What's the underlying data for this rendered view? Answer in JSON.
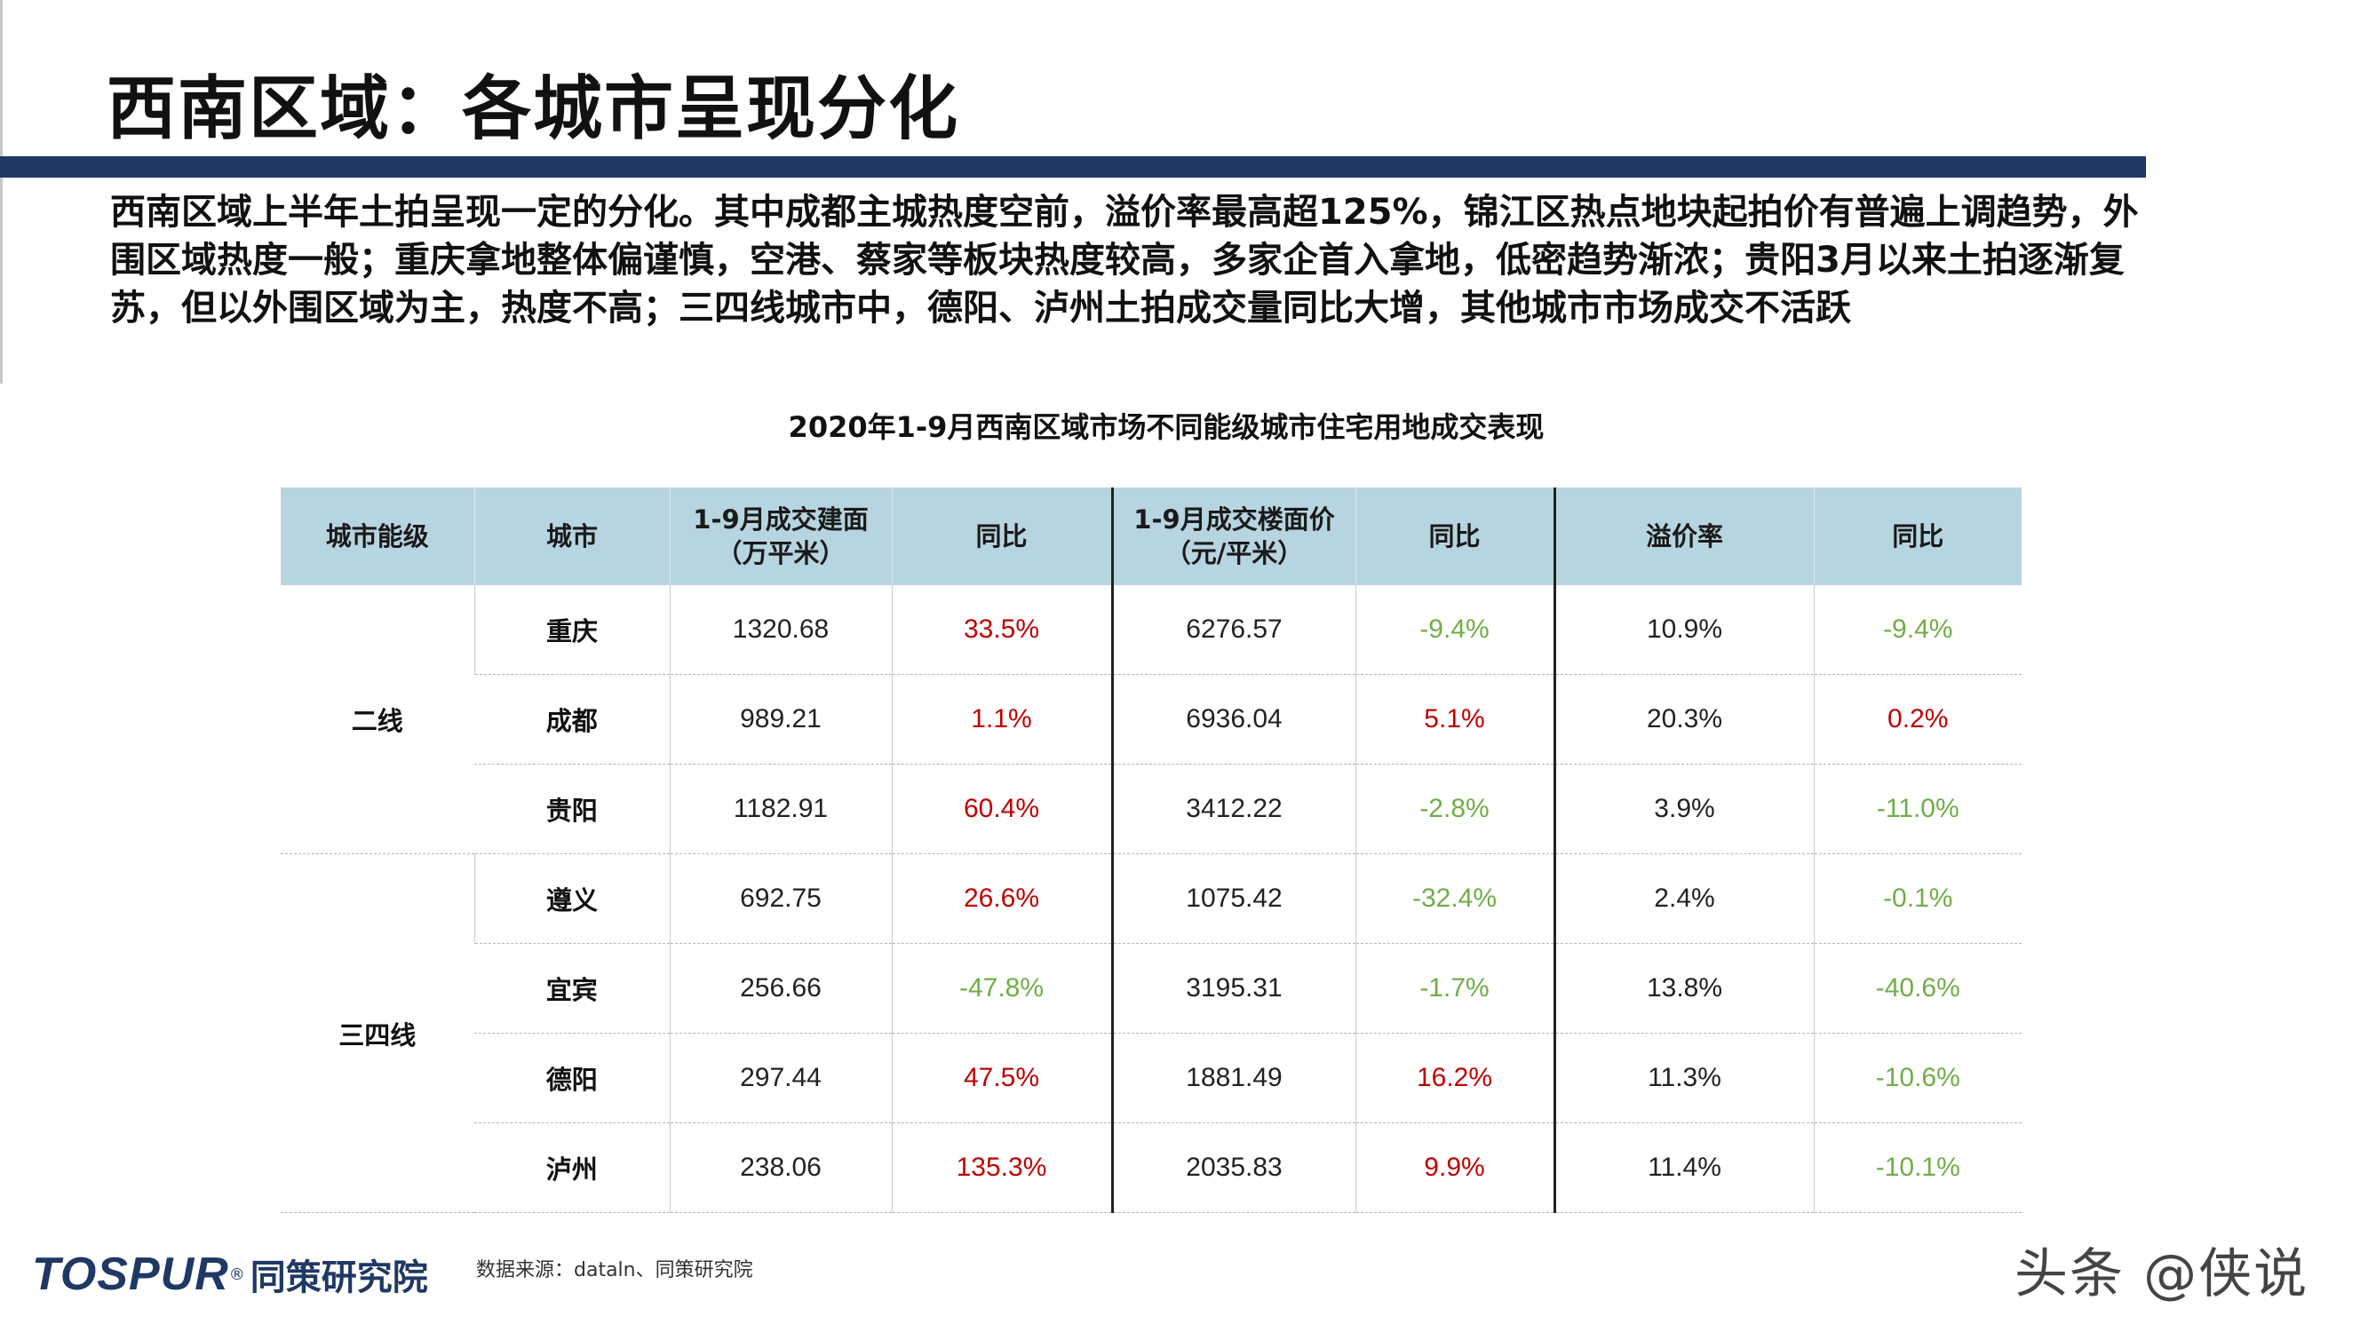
{
  "title": "西南区域：各城市呈现分化",
  "summary": "西南区域上半年土拍呈现一定的分化。其中成都主城热度空前，溢价率最高超125%，锦江区热点地块起拍价有普遍上调趋势，外围区域热度一般；重庆拿地整体偏谨慎，空港、蔡家等板块热度较高，多家企首入拿地，低密趋势渐浓；贵阳3月以来土拍逐渐复苏，但以外围区域为主，热度不高；三四线城市中，德阳、泸州土拍成交量同比大增，其他城市市场成交不活跃",
  "table": {
    "title": "2020年1-9月西南区域市场不同能级城市住宅用地成交表现",
    "headers": [
      [
        "城市能级"
      ],
      [
        "城市"
      ],
      [
        "1-9月成交建面",
        "（万平米）"
      ],
      [
        "同比"
      ],
      [
        "1-9月成交楼面价",
        "（元/平米）"
      ],
      [
        "同比"
      ],
      [
        "溢价率"
      ],
      [
        "同比"
      ]
    ],
    "groups": [
      {
        "tier": "二线",
        "rows": [
          [
            "重庆",
            "1320.68",
            "33.5%",
            "6276.57",
            "-9.4%",
            "10.9%",
            "-9.4%"
          ],
          [
            "成都",
            "989.21",
            "1.1%",
            "6936.04",
            "5.1%",
            "20.3%",
            "0.2%"
          ],
          [
            "贵阳",
            "1182.91",
            "60.4%",
            "3412.22",
            "-2.8%",
            "3.9%",
            "-11.0%"
          ]
        ]
      },
      {
        "tier": "三四线",
        "rows": [
          [
            "遵义",
            "692.75",
            "26.6%",
            "1075.42",
            "-32.4%",
            "2.4%",
            "-0.1%"
          ],
          [
            "宜宾",
            "256.66",
            "-47.8%",
            "3195.31",
            "-1.7%",
            "13.8%",
            "-40.6%"
          ],
          [
            "德阳",
            "297.44",
            "47.5%",
            "1881.49",
            "16.2%",
            "11.3%",
            "-10.6%"
          ],
          [
            "泸州",
            "238.06",
            "135.3%",
            "2035.83",
            "9.9%",
            "11.4%",
            "-10.1%"
          ]
        ]
      }
    ]
  },
  "colors": {
    "positive": "#c00000",
    "negative": "#70ad47",
    "header_bg": "#b7d5e0",
    "title_bar": "#1f3864"
  },
  "footer": {
    "logo_latin": "TOSPUR",
    "logo_reg": "®",
    "logo_cn": "同策研究院",
    "source": "数据来源：dataln、同策研究院",
    "watermark": "头条 @侠说"
  }
}
